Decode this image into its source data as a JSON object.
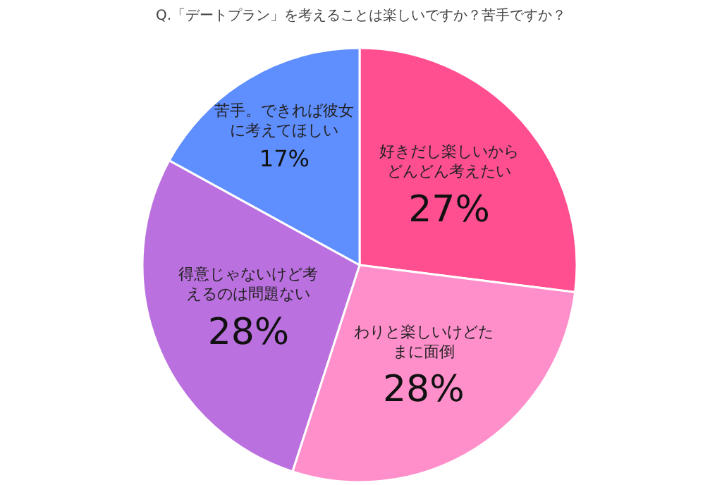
{
  "chart_data": {
    "type": "pie",
    "title": "Q.「デートプラン」を考えることは楽しいですか？苦手ですか？",
    "categories": [
      "好きだし楽しいからどんどん考えたい",
      "わりと楽しいけどたまに面倒",
      "得意じゃないけど考えるのは問題ない",
      "苦手。できれば彼女に考えてほしい"
    ],
    "values": [
      27,
      28,
      28,
      17
    ],
    "value_labels": [
      "27%",
      "28%",
      "28%",
      "17%"
    ],
    "colors": [
      "#ff4f90",
      "#ff8fcb",
      "#bb70df",
      "#5f8eff"
    ]
  }
}
